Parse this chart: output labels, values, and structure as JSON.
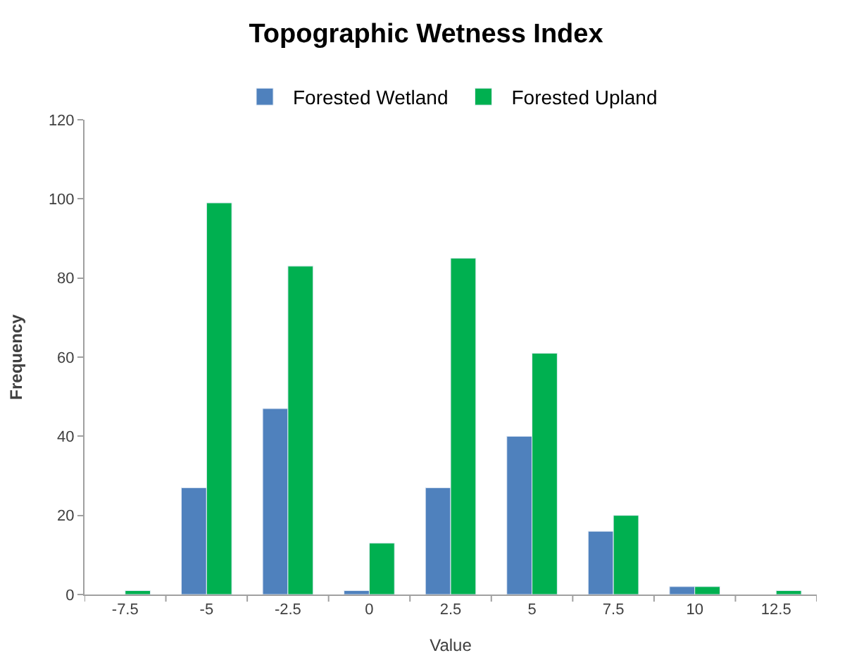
{
  "chart_data": {
    "type": "bar",
    "title": "Topographic Wetness Index",
    "xlabel": "Value",
    "ylabel": "Frequency",
    "categories": [
      "-7.5",
      "-5",
      "-2.5",
      "0",
      "2.5",
      "5",
      "7.5",
      "10",
      "12.5"
    ],
    "series": [
      {
        "name": "Forested Wetland",
        "color": "#4f81bd",
        "values": [
          null,
          27,
          47,
          1,
          27,
          40,
          16,
          2,
          null
        ]
      },
      {
        "name": "Forested Upland",
        "color": "#00b050",
        "values": [
          1,
          99,
          83,
          13,
          85,
          61,
          20,
          2,
          1
        ]
      }
    ],
    "ylim": [
      0,
      120
    ],
    "yticks": [
      0,
      20,
      40,
      60,
      80,
      100,
      120
    ],
    "legend": "top"
  }
}
